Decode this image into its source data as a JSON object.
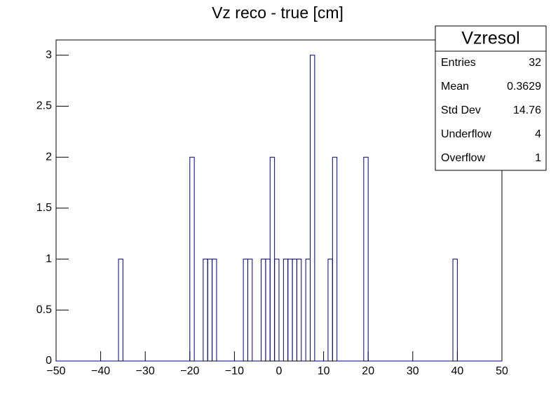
{
  "chart_data": {
    "type": "histogram",
    "title": "Vz reco - true [cm]",
    "bins": [
      -50,
      -49,
      -48,
      -47,
      -46,
      -45,
      -44,
      -43,
      -42,
      -41,
      -40,
      -39,
      -38,
      -37,
      -36,
      -35,
      -34,
      -33,
      -32,
      -31,
      -30,
      -29,
      -28,
      -27,
      -26,
      -25,
      -24,
      -23,
      -22,
      -21,
      -20,
      -19,
      -18,
      -17,
      -16,
      -15,
      -14,
      -13,
      -12,
      -11,
      -10,
      -9,
      -8,
      -7,
      -6,
      -5,
      -4,
      -3,
      -2,
      -1,
      0,
      1,
      2,
      3,
      4,
      5,
      6,
      7,
      8,
      9,
      10,
      11,
      12,
      13,
      14,
      15,
      16,
      17,
      18,
      19,
      20,
      21,
      22,
      23,
      24,
      25,
      26,
      27,
      28,
      29,
      30,
      31,
      32,
      33,
      34,
      35,
      36,
      37,
      38,
      39,
      40,
      41,
      42,
      43,
      44,
      45,
      46,
      47,
      48,
      49,
      50
    ],
    "values": [
      0,
      0,
      0,
      0,
      0,
      0,
      0,
      0,
      0,
      0,
      0,
      0,
      0,
      0,
      1,
      0,
      0,
      0,
      0,
      0,
      0,
      0,
      0,
      0,
      0,
      0,
      0,
      0,
      0,
      0,
      2,
      0,
      0,
      1,
      1,
      1,
      0,
      0,
      0,
      0,
      0,
      0,
      1,
      1,
      0,
      0,
      1,
      1,
      2,
      1,
      0,
      1,
      1,
      1,
      1,
      0,
      1,
      3,
      0,
      0,
      0,
      1,
      2,
      0,
      0,
      0,
      0,
      0,
      0,
      2,
      0,
      0,
      0,
      0,
      0,
      0,
      0,
      0,
      0,
      0,
      0,
      0,
      0,
      0,
      0,
      0,
      0,
      0,
      0,
      1,
      0,
      0,
      0,
      0,
      0,
      0,
      0,
      0,
      0,
      0
    ],
    "color": "#000080",
    "xlim": [
      -50,
      50
    ],
    "xticks": [
      {
        "value": -50,
        "label": "−50"
      },
      {
        "value": -40,
        "label": "−40"
      },
      {
        "value": -30,
        "label": "−30"
      },
      {
        "value": -20,
        "label": "−20"
      },
      {
        "value": -10,
        "label": "−10"
      },
      0,
      10,
      20,
      30,
      40,
      50
    ],
    "ylim": [
      0,
      3.15
    ],
    "yticks": [
      0,
      0.5,
      1,
      1.5,
      2,
      2.5,
      3
    ],
    "stats": {
      "title": "Vzresol",
      "rows": [
        {
          "label": "Entries",
          "value": 32
        },
        {
          "label": "Mean",
          "value": 0.3629
        },
        {
          "label": "Std Dev",
          "value": 14.76
        },
        {
          "label": "Underflow",
          "value": 4
        },
        {
          "label": "Overflow",
          "value": 1
        }
      ]
    }
  }
}
